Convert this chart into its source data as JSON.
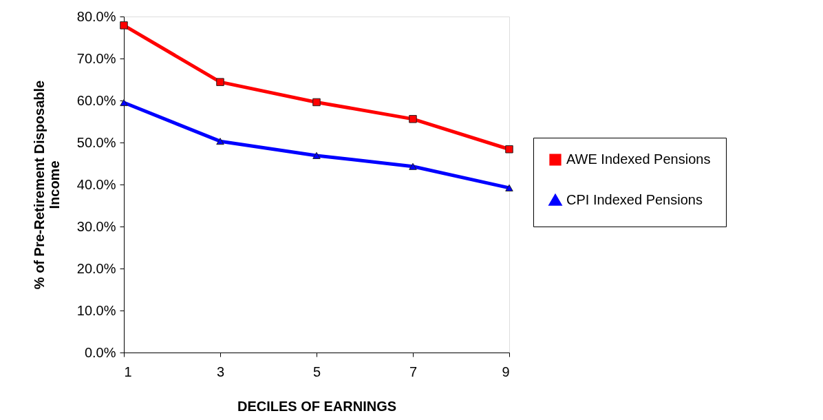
{
  "chart_data": {
    "type": "line",
    "xlabel": "DECILES OF EARNINGS",
    "ylabel": "% of Pre-Retirement Disposable\nIncome",
    "x": [
      1,
      3,
      5,
      7,
      9
    ],
    "xlim": [
      1,
      9
    ],
    "xticks": [
      1,
      3,
      5,
      7,
      9
    ],
    "ylim": [
      0,
      80
    ],
    "yticks": [
      {
        "value": 0,
        "label": "0.0%"
      },
      {
        "value": 10,
        "label": "10.0%"
      },
      {
        "value": 20,
        "label": "20.0%"
      },
      {
        "value": 30,
        "label": "30.0%"
      },
      {
        "value": 40,
        "label": "40.0%"
      },
      {
        "value": 50,
        "label": "50.0%"
      },
      {
        "value": 60,
        "label": "60.0%"
      },
      {
        "value": 70,
        "label": "70.0%"
      },
      {
        "value": 80,
        "label": "80.0%"
      }
    ],
    "series": [
      {
        "name": "AWE Indexed Pensions",
        "color": "#ff0000",
        "marker": "square",
        "values": [
          77.9,
          64.4,
          59.6,
          55.6,
          48.4
        ]
      },
      {
        "name": "CPI Indexed Pensions",
        "color": "#0000ff",
        "marker": "triangle",
        "values": [
          59.5,
          50.3,
          46.9,
          44.3,
          39.2
        ]
      }
    ],
    "grid": false,
    "legend": "right",
    "line_style": "solid"
  }
}
